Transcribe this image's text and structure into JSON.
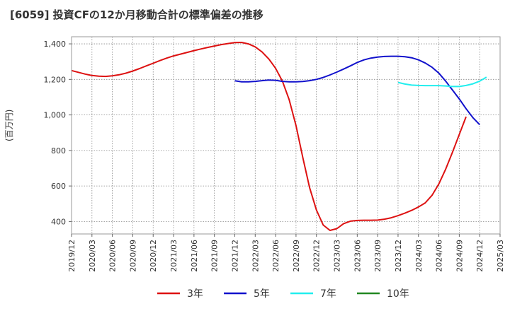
{
  "chart_data": {
    "type": "line",
    "title": "[6059]  投資CFの12か月移動合計の標準偏差の推移",
    "ylabel": "(百万円)",
    "xlabel": "",
    "ylim": [
      330,
      1440
    ],
    "yticks": [
      400,
      600,
      800,
      "1,000",
      "1,200",
      "1,400"
    ],
    "ytick_values": [
      400,
      600,
      800,
      1000,
      1200,
      1400
    ],
    "xticks": [
      "2019/12",
      "2020/03",
      "2020/06",
      "2020/09",
      "2020/12",
      "2021/03",
      "2021/06",
      "2021/09",
      "2021/12",
      "2022/03",
      "2022/06",
      "2022/09",
      "2022/12",
      "2023/03",
      "2023/06",
      "2023/09",
      "2023/12",
      "2024/03",
      "2024/06",
      "2024/09",
      "2024/12",
      "2025/03"
    ],
    "grid": true,
    "legend_position": "bottom",
    "series": [
      {
        "name": "3年",
        "color": "#dd1111",
        "start_index": 0,
        "values": [
          1250,
          1240,
          1230,
          1222,
          1218,
          1217,
          1220,
          1226,
          1235,
          1247,
          1261,
          1276,
          1291,
          1306,
          1320,
          1332,
          1342,
          1352,
          1362,
          1371,
          1380,
          1388,
          1396,
          1402,
          1407,
          1408,
          1400,
          1383,
          1355,
          1315,
          1262,
          1190,
          1085,
          940,
          760,
          590,
          465,
          380,
          350,
          360,
          388,
          402,
          406,
          407,
          407,
          408,
          413,
          421,
          433,
          447,
          463,
          482,
          505,
          548,
          612,
          695,
          790,
          890,
          990
        ]
      },
      {
        "name": "5年",
        "color": "#1111cc",
        "start_index": 24,
        "values": [
          1192,
          1186,
          1186,
          1189,
          1193,
          1196,
          1195,
          1189,
          1186,
          1186,
          1188,
          1193,
          1200,
          1211,
          1225,
          1241,
          1258,
          1276,
          1295,
          1310,
          1320,
          1326,
          1329,
          1330,
          1330,
          1328,
          1322,
          1310,
          1292,
          1268,
          1235,
          1190,
          1140,
          1090,
          1035,
          985,
          945
        ]
      },
      {
        "name": "7年",
        "color": "#22eeee",
        "start_index": 48,
        "values": [
          1183,
          1174,
          1168,
          1166,
          1165,
          1165,
          1165,
          1163,
          1160,
          1160,
          1166,
          1175,
          1190,
          1213
        ]
      },
      {
        "name": "10年",
        "color": "#228822",
        "start_index": 0,
        "values": []
      }
    ]
  }
}
